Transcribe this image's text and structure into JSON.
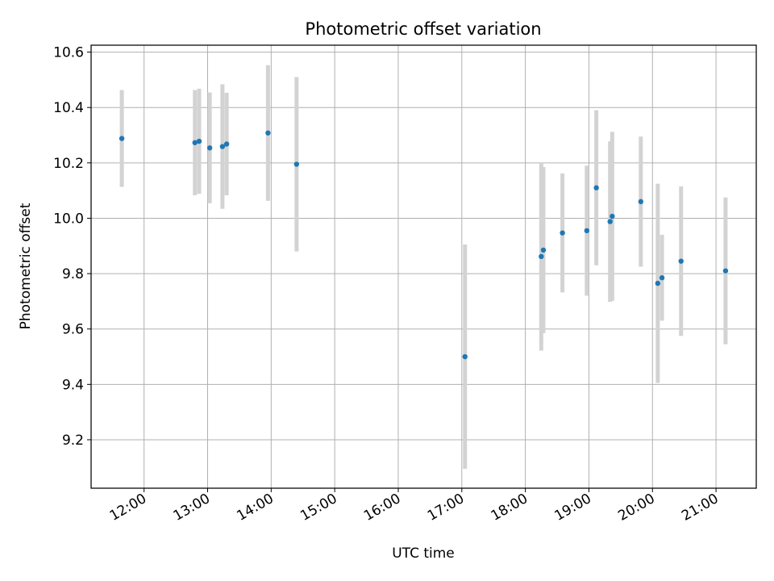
{
  "chart_data": {
    "type": "scatter",
    "title": "Photometric offset variation",
    "xlabel": "UTC time",
    "ylabel": "Photometric offset",
    "xlim": [
      "11:10",
      "21:38"
    ],
    "ylim": [
      9.025,
      10.625
    ],
    "grid": true,
    "x_ticks": [
      "12:00",
      "13:00",
      "14:00",
      "15:00",
      "16:00",
      "17:00",
      "18:00",
      "19:00",
      "20:00",
      "21:00"
    ],
    "y_ticks": [
      9.2,
      9.4,
      9.6,
      9.8,
      10.0,
      10.2,
      10.4,
      10.6
    ],
    "y_tick_labels": [
      "9.2",
      "9.4",
      "9.6",
      "9.8",
      "10.0",
      "10.2",
      "10.4",
      "10.6"
    ],
    "series": [
      {
        "marker_color": "#1f77b4",
        "errorbar_color": "#d3d3d3",
        "points": [
          {
            "x": "11:39",
            "y": 10.288,
            "err": 0.175
          },
          {
            "x": "12:48",
            "y": 10.273,
            "err": 0.19
          },
          {
            "x": "12:52",
            "y": 10.278,
            "err": 0.19
          },
          {
            "x": "13:02",
            "y": 10.254,
            "err": 0.2
          },
          {
            "x": "13:14",
            "y": 10.259,
            "err": 0.225
          },
          {
            "x": "13:18",
            "y": 10.268,
            "err": 0.185
          },
          {
            "x": "13:57",
            "y": 10.308,
            "err": 0.245
          },
          {
            "x": "14:24",
            "y": 10.195,
            "err": 0.315
          },
          {
            "x": "17:03",
            "y": 9.5,
            "err": 0.405
          },
          {
            "x": "18:15",
            "y": 9.862,
            "err": 0.34
          },
          {
            "x": "18:17",
            "y": 9.885,
            "err": 0.3
          },
          {
            "x": "18:35",
            "y": 9.947,
            "err": 0.215
          },
          {
            "x": "18:58",
            "y": 9.955,
            "err": 0.235
          },
          {
            "x": "19:07",
            "y": 10.11,
            "err": 0.28
          },
          {
            "x": "19:20",
            "y": 9.988,
            "err": 0.29
          },
          {
            "x": "19:22",
            "y": 10.007,
            "err": 0.305
          },
          {
            "x": "19:49",
            "y": 10.06,
            "err": 0.235
          },
          {
            "x": "20:05",
            "y": 9.765,
            "err": 0.36
          },
          {
            "x": "20:09",
            "y": 9.785,
            "err": 0.155
          },
          {
            "x": "20:27",
            "y": 9.845,
            "err": 0.27
          },
          {
            "x": "21:09",
            "y": 9.81,
            "err": 0.265
          }
        ]
      }
    ]
  }
}
